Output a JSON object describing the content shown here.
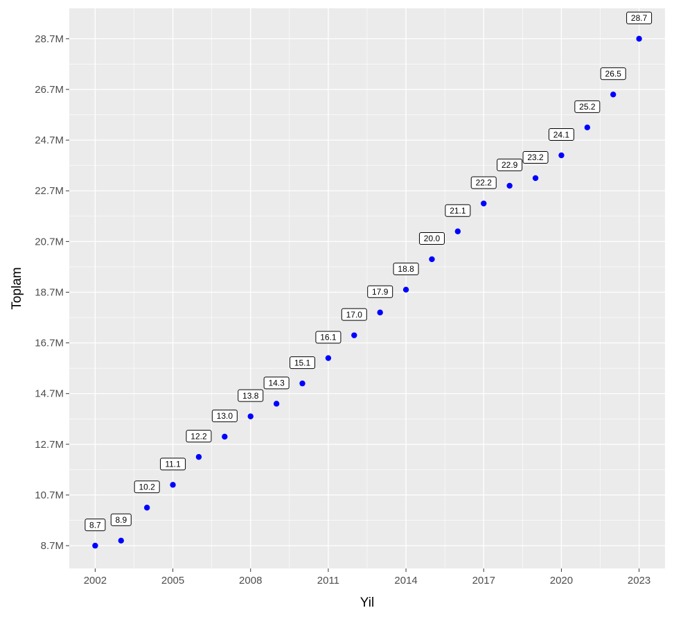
{
  "chart_data": {
    "type": "scatter",
    "title": "",
    "xlabel": "Yil",
    "ylabel": "Toplam",
    "x": [
      2002,
      2003,
      2004,
      2005,
      2006,
      2007,
      2008,
      2009,
      2010,
      2011,
      2012,
      2013,
      2014,
      2015,
      2016,
      2017,
      2018,
      2019,
      2020,
      2021,
      2022,
      2023
    ],
    "y": [
      8.7,
      8.9,
      10.2,
      11.1,
      12.2,
      13.0,
      13.8,
      14.3,
      15.1,
      16.1,
      17.0,
      17.9,
      18.8,
      20.0,
      21.1,
      22.2,
      22.9,
      23.2,
      24.1,
      25.2,
      26.5,
      28.7
    ],
    "point_labels": [
      "8.7",
      "8.9",
      "10.2",
      "11.1",
      "12.2",
      "13.0",
      "13.8",
      "14.3",
      "15.1",
      "16.1",
      "17.0",
      "17.9",
      "18.8",
      "20.0",
      "21.1",
      "22.2",
      "22.9",
      "23.2",
      "24.1",
      "25.2",
      "26.5",
      "28.7"
    ],
    "y_unit": "M",
    "xlim": [
      2001,
      2024
    ],
    "ylim": [
      7.8,
      29.9
    ],
    "x_ticks": [
      2002,
      2005,
      2008,
      2011,
      2014,
      2017,
      2020,
      2023
    ],
    "x_tick_labels": [
      "2002",
      "2005",
      "2008",
      "2011",
      "2014",
      "2017",
      "2020",
      "2023"
    ],
    "y_ticks": [
      8.7,
      10.7,
      12.7,
      14.7,
      16.7,
      18.7,
      20.7,
      22.7,
      24.7,
      26.7,
      28.7
    ],
    "y_tick_labels": [
      "8.7M",
      "10.7M",
      "12.7M",
      "14.7M",
      "16.7M",
      "18.7M",
      "20.7M",
      "22.7M",
      "24.7M",
      "26.7M",
      "28.7M"
    ],
    "grid": true,
    "legend": "none",
    "colors": {
      "point": "#0000ff",
      "panel": "#ebebeb",
      "gridline": "#ffffff",
      "label_border": "#000000",
      "label_fill": "#ffffff"
    }
  }
}
